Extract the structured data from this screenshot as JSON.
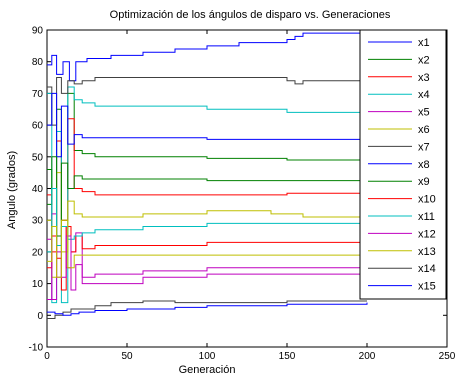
{
  "chart_data": {
    "type": "line",
    "title": "Optimización de los ángulos de disparo vs. Generaciones",
    "xlabel": "Generación",
    "ylabel": "Angulo (grados)",
    "xlim": [
      0,
      250
    ],
    "ylim": [
      -10,
      90
    ],
    "xticks": [
      0,
      50,
      100,
      150,
      200,
      250
    ],
    "yticks": [
      -10,
      0,
      10,
      20,
      30,
      40,
      50,
      60,
      70,
      80,
      90
    ],
    "grid": false,
    "legend_position": "top-right",
    "series": [
      {
        "name": "x1",
        "color": "#0000ff",
        "x": [
          0,
          3,
          6,
          10,
          14,
          18,
          25,
          40,
          60,
          80,
          100,
          120,
          150,
          155,
          160,
          180,
          200
        ],
        "y": [
          79,
          82,
          76,
          80,
          74,
          80,
          81,
          82,
          83,
          84,
          85,
          86,
          87,
          88,
          89,
          89,
          89
        ]
      },
      {
        "name": "x2",
        "color": "#008000",
        "x": [
          0,
          3,
          6,
          9,
          13,
          17,
          22,
          30,
          60,
          100,
          150,
          200
        ],
        "y": [
          46,
          25,
          65,
          30,
          70,
          52,
          51,
          50,
          50,
          49.5,
          49,
          48.5
        ]
      },
      {
        "name": "x3",
        "color": "#ff0000",
        "x": [
          0,
          3,
          6,
          9,
          13,
          17,
          22,
          30,
          60,
          100,
          150,
          200
        ],
        "y": [
          38,
          20,
          55,
          30,
          62,
          40,
          39,
          38,
          38,
          38,
          38.5,
          38.5
        ]
      },
      {
        "name": "x4",
        "color": "#00bfbf",
        "x": [
          0,
          3,
          6,
          9,
          13,
          17,
          22,
          30,
          60,
          100,
          150,
          200
        ],
        "y": [
          70,
          4,
          58,
          4,
          72,
          68,
          67,
          66,
          66,
          65,
          64,
          64
        ]
      },
      {
        "name": "x5",
        "color": "#bf00bf",
        "x": [
          0,
          3,
          6,
          9,
          12,
          15,
          18,
          22,
          30,
          60,
          100,
          150,
          200
        ],
        "y": [
          5,
          32,
          12,
          28,
          15,
          20,
          26,
          10,
          10,
          12,
          13,
          13,
          14
        ]
      },
      {
        "name": "x6",
        "color": "#bfbf00",
        "x": [
          0,
          3,
          6,
          9,
          13,
          17,
          22,
          30,
          60,
          100,
          140,
          160,
          200
        ],
        "y": [
          30,
          12,
          45,
          20,
          36,
          32,
          31,
          31,
          32,
          33,
          32,
          31,
          31
        ]
      },
      {
        "name": "x7",
        "color": "#404040",
        "x": [
          0,
          3,
          6,
          9,
          13,
          17,
          22,
          30,
          60,
          100,
          150,
          155,
          160,
          200
        ],
        "y": [
          72,
          60,
          75,
          70,
          74,
          73,
          74,
          75,
          75,
          75,
          74,
          73,
          74,
          74
        ]
      },
      {
        "name": "x8",
        "color": "#0000ff",
        "x": [
          0,
          3,
          6,
          9,
          13,
          17,
          22,
          30,
          60,
          100,
          150,
          200
        ],
        "y": [
          60,
          70,
          50,
          66,
          54,
          57,
          56,
          56,
          56,
          55.5,
          55.5,
          55
        ]
      },
      {
        "name": "x9",
        "color": "#008000",
        "x": [
          0,
          3,
          6,
          9,
          13,
          17,
          22,
          30,
          60,
          100,
          150,
          200
        ],
        "y": [
          35,
          50,
          25,
          48,
          40,
          44,
          43,
          43,
          43,
          42.5,
          42.5,
          42
        ]
      },
      {
        "name": "x10",
        "color": "#ff0000",
        "x": [
          0,
          3,
          6,
          9,
          12,
          15,
          18,
          22,
          30,
          60,
          100,
          150,
          200
        ],
        "y": [
          15,
          25,
          18,
          8,
          28,
          20,
          25,
          21,
          22,
          22,
          23,
          23,
          23
        ]
      },
      {
        "name": "x11",
        "color": "#00bfbf",
        "x": [
          0,
          3,
          6,
          9,
          13,
          17,
          22,
          30,
          60,
          100,
          150,
          200
        ],
        "y": [
          20,
          40,
          22,
          28,
          24,
          25,
          26,
          27,
          28,
          29,
          29,
          29
        ]
      },
      {
        "name": "x12",
        "color": "#bf00bf",
        "x": [
          0,
          3,
          6,
          9,
          12,
          15,
          18,
          22,
          30,
          60,
          100,
          150,
          200
        ],
        "y": [
          24,
          5,
          20,
          12,
          25,
          8,
          16,
          12,
          13,
          14,
          15,
          15,
          15
        ]
      },
      {
        "name": "x13",
        "color": "#bfbf00",
        "x": [
          0,
          3,
          6,
          9,
          13,
          17,
          22,
          30,
          60,
          100,
          150,
          200
        ],
        "y": [
          17,
          28,
          12,
          30,
          15,
          19,
          19,
          19,
          19,
          19,
          19,
          19
        ]
      },
      {
        "name": "x14",
        "color": "#404040",
        "x": [
          0,
          5,
          10,
          15,
          20,
          30,
          40,
          60,
          80,
          100,
          150,
          200
        ],
        "y": [
          -1,
          0,
          1,
          2,
          2,
          3,
          4,
          4.5,
          4,
          4,
          4.5,
          4.5
        ]
      },
      {
        "name": "x15",
        "color": "#0000ff",
        "x": [
          0,
          5,
          10,
          15,
          20,
          30,
          50,
          80,
          100,
          150,
          200
        ],
        "y": [
          1,
          0.5,
          0,
          0.5,
          1,
          1.5,
          2,
          2.5,
          3,
          3.5,
          4
        ]
      }
    ]
  }
}
